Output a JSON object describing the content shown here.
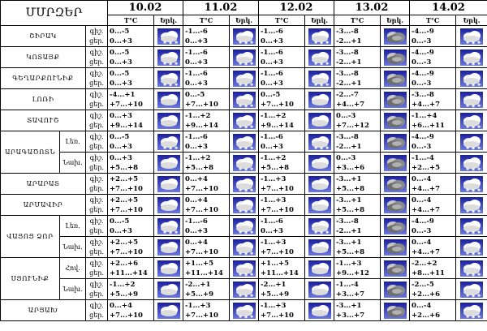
{
  "header": {
    "region_label": "ՄՄՐԶԵՐ",
    "dates": [
      "10.02",
      "11.02",
      "12.02",
      "13.02",
      "14.02"
    ],
    "temp_label": "T°C",
    "icon_label": "Երկ."
  },
  "row_labels": {
    "night": "գիշ.",
    "day": "ցեր."
  },
  "regions": [
    {
      "name": "ՇԻՐԱԿ",
      "cells": [
        {
          "night": "0...-5",
          "day": "0...+3",
          "icon": "snow"
        },
        {
          "night": "-1...-6",
          "day": "0...+3",
          "icon": "snow"
        },
        {
          "night": "-1...-6",
          "day": "0...+3",
          "icon": "snow"
        },
        {
          "night": "-3...-8",
          "day": "-2...+1",
          "icon": "cloudy"
        },
        {
          "night": "-4...-9",
          "day": "0...-3",
          "icon": "snow"
        }
      ]
    },
    {
      "name": "ԿՈՏԱՅՔ",
      "cells": [
        {
          "night": "0...-5",
          "day": "0...+3",
          "icon": "snow"
        },
        {
          "night": "-1...-6",
          "day": "0...+3",
          "icon": "snow"
        },
        {
          "night": "-1...-6",
          "day": "0...+3",
          "icon": "snow"
        },
        {
          "night": "-3...-8",
          "day": "-2...+1",
          "icon": "cloudy"
        },
        {
          "night": "-4...-9",
          "day": "0...-3",
          "icon": "snow"
        }
      ]
    },
    {
      "name": "ԳԵՂԱՐՔՈՒՆԻՔ",
      "cells": [
        {
          "night": "0...-5",
          "day": "0...+3",
          "icon": "snow"
        },
        {
          "night": "-1...-6",
          "day": "0...+3",
          "icon": "snow"
        },
        {
          "night": "-1...-6",
          "day": "0...+3",
          "icon": "snow"
        },
        {
          "night": "-3...-8",
          "day": "-2...+1",
          "icon": "cloudy"
        },
        {
          "night": "-4...-9",
          "day": "0...-3",
          "icon": "snow"
        }
      ]
    },
    {
      "name": "ԼՈՌԻ",
      "cells": [
        {
          "night": "-4...+1",
          "day": "+7...+10",
          "icon": "cloud"
        },
        {
          "night": "0...-5",
          "day": "+7...+10",
          "icon": "snow"
        },
        {
          "night": "0...-5",
          "day": "+7...+10",
          "icon": "cloud"
        },
        {
          "night": "-2...-7",
          "day": "+4...+7",
          "icon": "cloudy"
        },
        {
          "night": "-3...-8",
          "day": "+4...+7",
          "icon": "snow"
        }
      ]
    },
    {
      "name": "ՏԱՎՈՒՇ",
      "cells": [
        {
          "night": "0...+3",
          "day": "+9...+14",
          "icon": "cloud"
        },
        {
          "night": "-1...+2",
          "day": "+9...+14",
          "icon": "snow"
        },
        {
          "night": "-1...+2",
          "day": "+9...+14",
          "icon": "cloud"
        },
        {
          "night": "0...-3",
          "day": "+7...+12",
          "icon": "cloudy"
        },
        {
          "night": "-1...+4",
          "day": "+6...+11",
          "icon": "snow"
        }
      ]
    }
  ],
  "aragatsotn": {
    "name": "ԱՐԱԳԱԾՈՏՆ",
    "subs": [
      {
        "label": "Լեռ.",
        "cells": [
          {
            "night": "0...-5",
            "day": "0...+3",
            "icon": "snow"
          },
          {
            "night": "-1...-6",
            "day": "0...+3",
            "icon": "snow"
          },
          {
            "night": "-1...-6",
            "day": "0...+3",
            "icon": "snow"
          },
          {
            "night": "-3...-8",
            "day": "-2...+1",
            "icon": "cloudy"
          },
          {
            "night": "-4...-9",
            "day": "0...-3",
            "icon": "snow"
          }
        ]
      },
      {
        "label": "Նախ.",
        "cells": [
          {
            "night": "0...+3",
            "day": "+5...+8",
            "icon": "cloud"
          },
          {
            "night": "-1...+2",
            "day": "+5...+8",
            "icon": "snow"
          },
          {
            "night": "-1...+2",
            "day": "+5...+8",
            "icon": "cloud"
          },
          {
            "night": "0...-3",
            "day": "+3...+6",
            "icon": "cloudy"
          },
          {
            "night": "-1...-4",
            "day": "+2...+5",
            "icon": "snow"
          }
        ]
      }
    ]
  },
  "regions2": [
    {
      "name": "ԱՐԱՐԱՏ",
      "cells": [
        {
          "night": "+2...+5",
          "day": "+7...+10",
          "icon": "cloud"
        },
        {
          "night": "0...+4",
          "day": "+7...+10",
          "icon": "snow"
        },
        {
          "night": "-1...+3",
          "day": "+7...+10",
          "icon": "cloud"
        },
        {
          "night": "-3...+1",
          "day": "+5...+8",
          "icon": "cloudy"
        },
        {
          "night": "0...-4",
          "day": "+4...+7",
          "icon": "snow"
        }
      ]
    },
    {
      "name": "ԱՐՄԱՎԻՐ",
      "cells": [
        {
          "night": "+2...+5",
          "day": "+7...+10",
          "icon": "cloud"
        },
        {
          "night": "0...+4",
          "day": "+7...+10",
          "icon": "snow"
        },
        {
          "night": "-1...+3",
          "day": "+7...+10",
          "icon": "cloud"
        },
        {
          "night": "-3...+1",
          "day": "+5...+8",
          "icon": "cloudy"
        },
        {
          "night": "0...-4",
          "day": "+4...+7",
          "icon": "snow"
        }
      ]
    }
  ],
  "vayots_dzor": {
    "name": "ՎԱՅՈՑ ՁՈՐ",
    "subs": [
      {
        "label": "Լեռ.",
        "cells": [
          {
            "night": "0...-5",
            "day": "0...+3",
            "icon": "snow"
          },
          {
            "night": "-1...-6",
            "day": "0...+3",
            "icon": "snow"
          },
          {
            "night": "-1...-6",
            "day": "0...+3",
            "icon": "snow"
          },
          {
            "night": "-3...-8",
            "day": "-2...+1",
            "icon": "cloudy"
          },
          {
            "night": "-4...-9",
            "day": "0...-3",
            "icon": "snow"
          }
        ]
      },
      {
        "label": "Նախ.",
        "cells": [
          {
            "night": "+2...+5",
            "day": "+7...+10",
            "icon": "cloud"
          },
          {
            "night": "0...+4",
            "day": "+7...+10",
            "icon": "snow"
          },
          {
            "night": "-1...+3",
            "day": "+7...+10",
            "icon": "cloud"
          },
          {
            "night": "-3...+1",
            "day": "+5...+8",
            "icon": "cloudy"
          },
          {
            "night": "0...-4",
            "day": "+4...+7",
            "icon": "snow"
          }
        ]
      }
    ]
  },
  "syunik": {
    "name": "ՍՅՈՒՆԻՔ",
    "subs": [
      {
        "label": "Հով.",
        "cells": [
          {
            "night": "+2...+6",
            "day": "+11...+14",
            "icon": "cloud"
          },
          {
            "night": "+1...+5",
            "day": "+11...+14",
            "icon": "snow"
          },
          {
            "night": "+1...+5",
            "day": "+11...+14",
            "icon": "cloud"
          },
          {
            "night": "-1...+3",
            "day": "+9...+12",
            "icon": "cloudy"
          },
          {
            "night": "-2...+2",
            "day": "+8...+11",
            "icon": "snow"
          }
        ]
      },
      {
        "label": "Նախ.",
        "cells": [
          {
            "night": "-1...+2",
            "day": "+5...+9",
            "icon": "cloud"
          },
          {
            "night": "-2...+1",
            "day": "+5...+9",
            "icon": "snow"
          },
          {
            "night": "-2...+1",
            "day": "+5...+9",
            "icon": "cloud"
          },
          {
            "night": "-1...-4",
            "day": "+3...+7",
            "icon": "cloudy"
          },
          {
            "night": "-2...-5",
            "day": "+2...+6",
            "icon": "snow"
          }
        ]
      }
    ]
  },
  "regions3": [
    {
      "name": "ԱՐՑԱԽ",
      "cells": [
        {
          "night": "0...+4",
          "day": "+7...+10",
          "icon": "cloud"
        },
        {
          "night": "-1...+3",
          "day": "+7...+10",
          "icon": "snow"
        },
        {
          "night": "-1...+3",
          "day": "+7...+10",
          "icon": "cloud"
        },
        {
          "night": "-3...+1",
          "day": "+3...+7",
          "icon": "cloudy"
        },
        {
          "night": "0...-4",
          "day": "+2...+6",
          "icon": "snow"
        }
      ]
    }
  ],
  "icon_names": {
    "snow": "snow-cloud-icon",
    "cloud": "cloud-icon",
    "cloudy": "overcast-icon"
  },
  "colors": {
    "icon_bg_top": "#1a1f9c",
    "icon_bg_bottom": "#6a78e0",
    "cloud_white": "#f4f4f4",
    "cloud_grey": "#8a8a8a"
  }
}
